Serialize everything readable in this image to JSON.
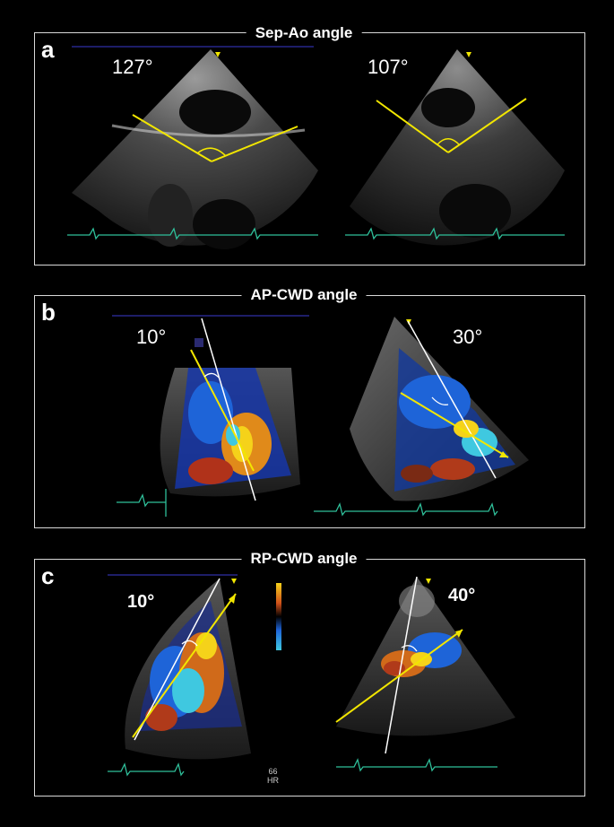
{
  "panels": {
    "a": {
      "letter": "a",
      "title": "Sep-Ao angle",
      "left_angle": "127°",
      "right_angle": "107°"
    },
    "b": {
      "letter": "b",
      "title": "AP-CWD angle",
      "left_angle": "10°",
      "right_angle": "30°"
    },
    "c": {
      "letter": "c",
      "title": "RP-CWD angle",
      "left_angle": "10°",
      "right_angle": "40°"
    }
  },
  "hr": {
    "value": "66",
    "unit": "HR"
  },
  "colors": {
    "measure_line": "#f2e600",
    "reference_line": "#ffffff",
    "ecg_trace": "#2fbf9a",
    "frame": "#d8d8d8"
  }
}
